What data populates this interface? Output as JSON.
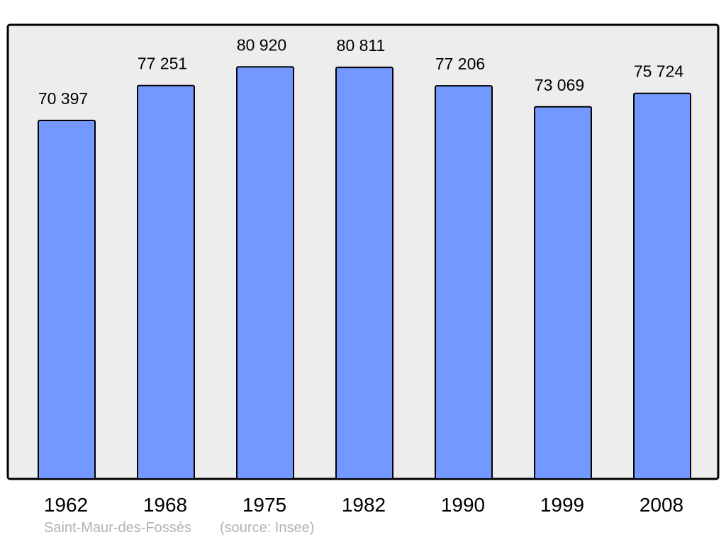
{
  "chart_data": {
    "type": "bar",
    "categories": [
      "1962",
      "1968",
      "1975",
      "1982",
      "1990",
      "1999",
      "2008"
    ],
    "values": [
      70397,
      77251,
      80920,
      80811,
      77206,
      73069,
      75724
    ],
    "value_labels": [
      "70 397",
      "77 251",
      "80 920",
      "80 811",
      "77 206",
      "73 069",
      "75 724"
    ],
    "title": "",
    "xlabel": "",
    "ylabel": "",
    "ylim": [
      0,
      89180
    ],
    "grid": false,
    "bar_color": "#7398ff",
    "background_color": "#ededed"
  },
  "caption": {
    "place": "Saint-Maur-des-Fossés",
    "source": "(source: Insee)"
  }
}
